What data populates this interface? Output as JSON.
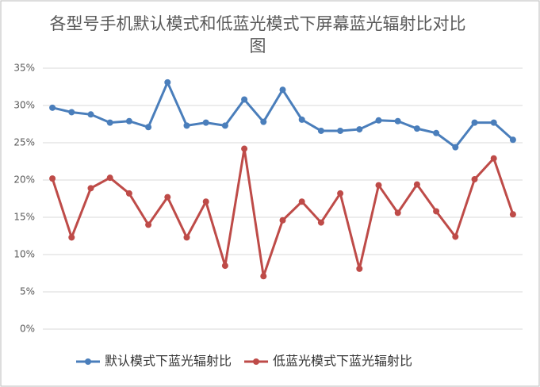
{
  "chart_data": {
    "type": "line",
    "title": "各型号手机默认模式和低蓝光模式下屏幕蓝光辐射比对比图",
    "categories": [
      null,
      null,
      null,
      null,
      null,
      null,
      null,
      null,
      null,
      null,
      null,
      null,
      null,
      null,
      null,
      null,
      null,
      null,
      null,
      null,
      null,
      null,
      null,
      null,
      null
    ],
    "series": [
      {
        "name": "默认模式下蓝光辐射比",
        "color": "#4a7ebb",
        "values": [
          29.7,
          29.1,
          28.8,
          27.7,
          27.9,
          27.1,
          33.1,
          27.3,
          27.7,
          27.3,
          30.8,
          27.8,
          32.1,
          28.1,
          26.6,
          26.6,
          26.8,
          28.0,
          27.9,
          26.9,
          26.3,
          24.4,
          27.7,
          27.7,
          25.4
        ]
      },
      {
        "name": "低蓝光模式下蓝光辐射比",
        "color": "#be4b48",
        "values": [
          20.2,
          12.3,
          18.9,
          20.3,
          18.2,
          14.0,
          17.7,
          12.3,
          17.1,
          8.5,
          24.2,
          7.1,
          14.6,
          17.1,
          14.3,
          18.2,
          8.1,
          19.3,
          15.6,
          19.4,
          15.8,
          12.4,
          20.1,
          22.9,
          15.4
        ]
      }
    ],
    "ylim": [
      0,
      35
    ],
    "yticks": [
      {
        "value": 0,
        "label": "0%"
      },
      {
        "value": 5,
        "label": "5%"
      },
      {
        "value": 10,
        "label": "10%"
      },
      {
        "value": 15,
        "label": "15%"
      },
      {
        "value": 20,
        "label": "20%"
      },
      {
        "value": 25,
        "label": "25%"
      },
      {
        "value": 30,
        "label": "30%"
      },
      {
        "value": 35,
        "label": "35%"
      }
    ],
    "grid": true,
    "legend": "bottom"
  }
}
